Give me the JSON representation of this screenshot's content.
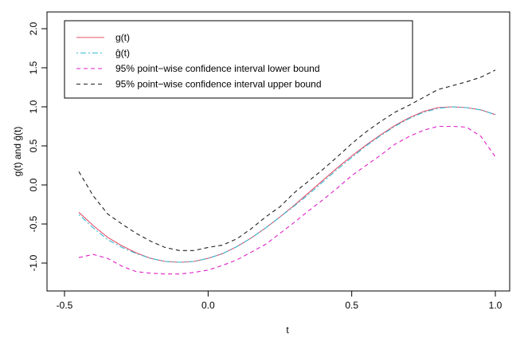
{
  "chart_data": {
    "type": "line",
    "title": "",
    "xlabel": "t",
    "ylabel": "g(t)  and  ĝ(t)",
    "xlim": [
      -0.5,
      1.0
    ],
    "ylim": [
      -1.0,
      2.0
    ],
    "x_ticks": [
      -0.5,
      0.0,
      0.5,
      1.0
    ],
    "x_tick_labels": [
      "-0.5",
      "0.0",
      "0.5",
      "1.0"
    ],
    "y_ticks": [
      -1.0,
      -0.5,
      0.0,
      0.5,
      1.0,
      1.5,
      2.0
    ],
    "y_tick_labels": [
      "-1.0",
      "-0.5",
      "0.0",
      "0.5",
      "1.0",
      "1.5",
      "2.0"
    ],
    "legend_position": "top-left",
    "x": [
      -0.45,
      -0.4,
      -0.35,
      -0.3,
      -0.25,
      -0.2,
      -0.15,
      -0.1,
      -0.05,
      0.0,
      0.05,
      0.1,
      0.15,
      0.2,
      0.25,
      0.3,
      0.35,
      0.4,
      0.45,
      0.5,
      0.55,
      0.6,
      0.65,
      0.7,
      0.75,
      0.8,
      0.85,
      0.9,
      0.95,
      1.0
    ],
    "series": [
      {
        "name": "g(t)",
        "legend_label": "g(t)",
        "color": "#e0506a",
        "dash": "solid",
        "values": [
          -0.35,
          -0.52,
          -0.67,
          -0.78,
          -0.87,
          -0.94,
          -0.98,
          -0.99,
          -0.98,
          -0.94,
          -0.88,
          -0.79,
          -0.68,
          -0.55,
          -0.41,
          -0.26,
          -0.1,
          0.06,
          0.22,
          0.37,
          0.51,
          0.64,
          0.76,
          0.86,
          0.94,
          0.99,
          1.0,
          0.99,
          0.96,
          0.9
        ]
      },
      {
        "name": "g-hat(t)",
        "legend_label": "ĝ(t)",
        "color": "#37bcd6",
        "dash": "dotdash",
        "values": [
          -0.38,
          -0.55,
          -0.7,
          -0.8,
          -0.88,
          -0.94,
          -0.98,
          -0.99,
          -0.98,
          -0.94,
          -0.88,
          -0.79,
          -0.68,
          -0.55,
          -0.41,
          -0.27,
          -0.12,
          0.04,
          0.2,
          0.35,
          0.5,
          0.63,
          0.75,
          0.85,
          0.93,
          0.98,
          1.0,
          0.99,
          0.96,
          0.9
        ]
      },
      {
        "name": "ci-lower",
        "legend_label": "95% point−wise confidence interval lower bound",
        "color": "#e020c8",
        "dash": "dashed",
        "values": [
          -0.93,
          -0.89,
          -0.94,
          -1.04,
          -1.11,
          -1.13,
          -1.14,
          -1.14,
          -1.12,
          -1.09,
          -1.03,
          -0.96,
          -0.86,
          -0.76,
          -0.62,
          -0.48,
          -0.33,
          -0.19,
          -0.04,
          0.12,
          0.25,
          0.38,
          0.52,
          0.62,
          0.7,
          0.75,
          0.75,
          0.74,
          0.62,
          0.36
        ]
      },
      {
        "name": "ci-upper",
        "legend_label": "95% point−wise confidence interval upper bound",
        "color": "#222222",
        "dash": "dashed",
        "values": [
          0.17,
          -0.14,
          -0.37,
          -0.5,
          -0.62,
          -0.72,
          -0.8,
          -0.84,
          -0.84,
          -0.8,
          -0.77,
          -0.69,
          -0.56,
          -0.41,
          -0.28,
          -0.1,
          0.05,
          0.2,
          0.36,
          0.53,
          0.68,
          0.81,
          0.93,
          1.02,
          1.12,
          1.22,
          1.27,
          1.32,
          1.38,
          1.47
        ]
      }
    ]
  }
}
